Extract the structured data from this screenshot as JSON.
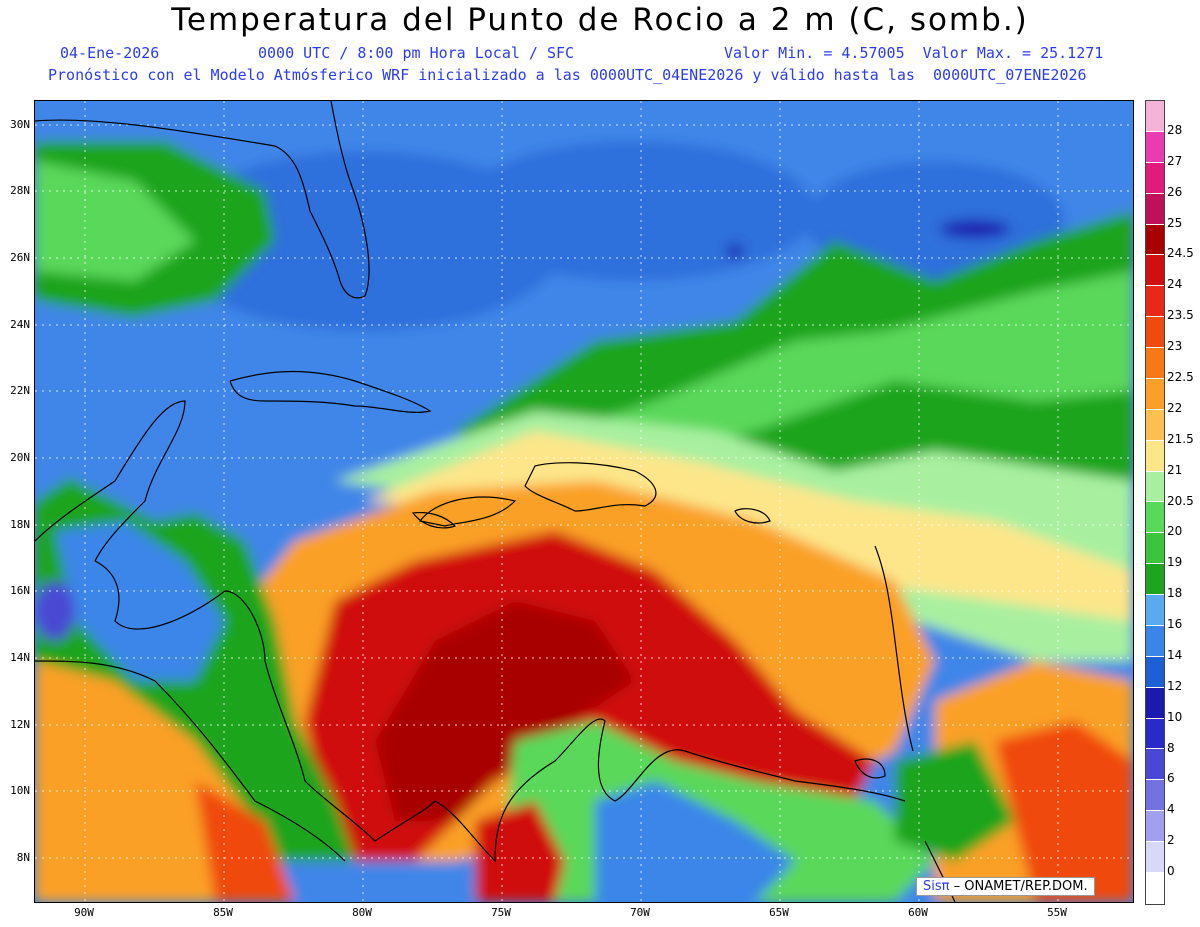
{
  "header": {
    "title": "Temperatura del Punto de Rocio a 2 m (C, somb.)",
    "date": "04-Ene-2026",
    "time": "0000 UTC / 8:00 pm Hora Local / SFC",
    "minmax": "Valor Min. = 4.57005  Valor Max. = 25.1271",
    "info": "Pronóstico con el Modelo Atmósferico WRF inicializado a las 0000UTC_04ENE2026 y válido hasta las  0000UTC_07ENE2026"
  },
  "map": {
    "lat_ticks": [
      "30N",
      "28N",
      "26N",
      "24N",
      "22N",
      "20N",
      "18N",
      "16N",
      "14N",
      "12N",
      "10N",
      "8N"
    ],
    "lon_ticks": [
      "90W",
      "85W",
      "80W",
      "75W",
      "70W",
      "65W",
      "60W",
      "55W"
    ],
    "credit_brand": "Sisπ",
    "credit_text": " – ONAMET/REP.DOM."
  },
  "legend": {
    "levels": [
      "28",
      "27",
      "26",
      "25",
      "24.5",
      "24",
      "23.5",
      "23",
      "22.5",
      "22",
      "21.5",
      "21",
      "20.5",
      "20",
      "19",
      "18",
      "16",
      "14",
      "12",
      "10",
      "8",
      "6",
      "4",
      "2",
      "0"
    ],
    "colors": [
      "#f4b4d8",
      "#e83cb0",
      "#e11a7c",
      "#c0105a",
      "#a80000",
      "#d01010",
      "#e82818",
      "#f04a10",
      "#f87818",
      "#faa028",
      "#fcc050",
      "#fde68a",
      "#a8f0a0",
      "#5ad85a",
      "#3cc43c",
      "#1ea41e",
      "#5aaaf0",
      "#3a86e8",
      "#1f5fd6",
      "#1a1ab0",
      "#2a2ac8",
      "#4848d4",
      "#7272e0",
      "#a0a0ee",
      "#d8d8f8",
      "#ffffff"
    ]
  }
}
